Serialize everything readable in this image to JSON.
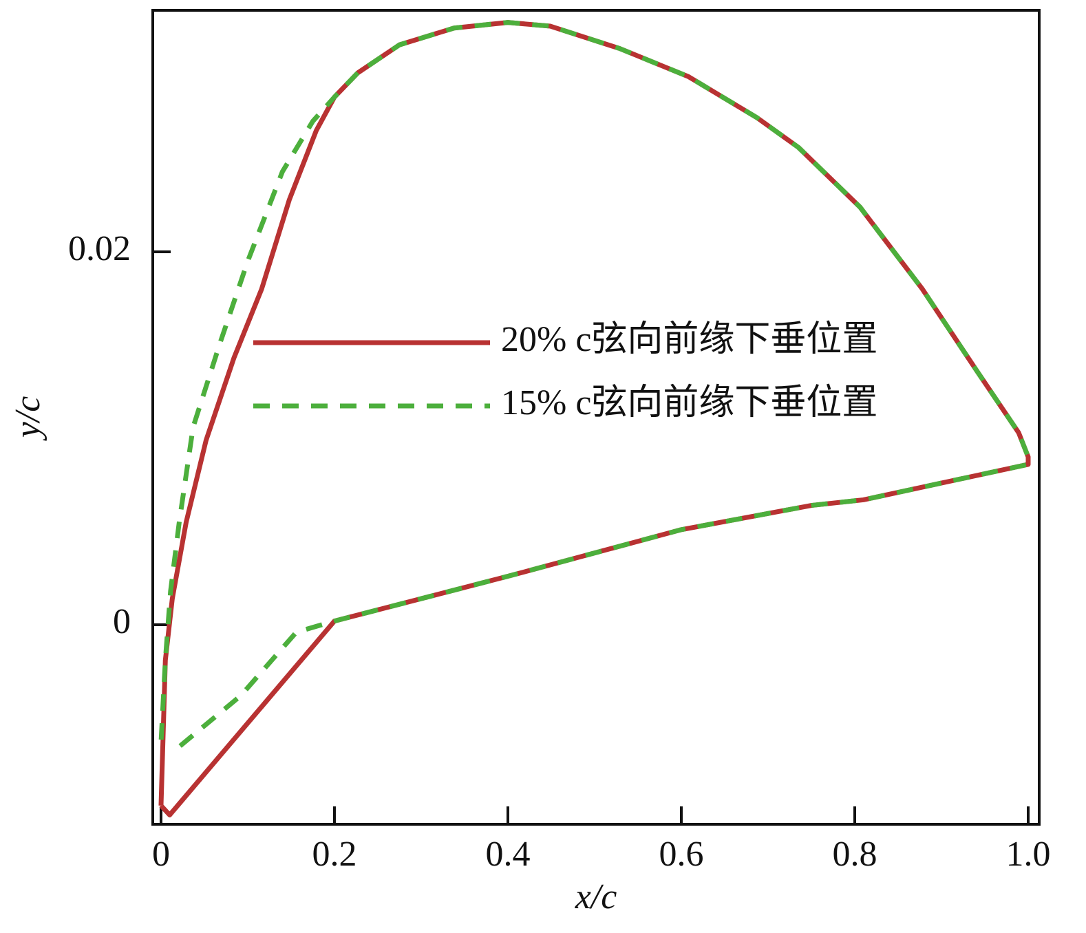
{
  "chart_data": {
    "type": "line",
    "x_label": "x/c",
    "y_label": "y/c",
    "xlim": [
      -0.0095,
      1.0127
    ],
    "ylim": [
      -0.0107,
      0.03295
    ],
    "xticks": [
      0,
      0.2,
      0.4,
      0.6,
      0.8,
      {
        "value": 1,
        "label": "1.0"
      }
    ],
    "yticks": [
      0,
      0.02
    ],
    "legend": "center-right",
    "series": [
      {
        "name": "20% c弦向前缘下垂位置",
        "color": "#b83232",
        "dash": "solid",
        "x": [
          0.0,
          0.01,
          0.2,
          0.4,
          0.6,
          0.75,
          0.81,
          1.0,
          1.0,
          0.989,
          0.941,
          0.878,
          0.806,
          0.735,
          0.687,
          0.608,
          0.529,
          0.449,
          0.4,
          0.338,
          0.275,
          0.227,
          0.2,
          0.179,
          0.148,
          0.116,
          0.084,
          0.052,
          0.029,
          0.013,
          0.005,
          0.0
        ],
        "values": [
          -0.0097,
          -0.0102,
          0.0002,
          0.0026,
          0.0051,
          0.0064,
          0.0067,
          0.0086,
          0.009,
          0.0103,
          0.0136,
          0.018,
          0.0224,
          0.0256,
          0.0272,
          0.0294,
          0.0309,
          0.0321,
          0.0323,
          0.032,
          0.0311,
          0.0296,
          0.0283,
          0.0265,
          0.0228,
          0.018,
          0.0143,
          0.0099,
          0.0055,
          0.0014,
          -0.0019,
          -0.0097
        ]
      },
      {
        "name": "15% c弦向前缘下垂位置",
        "color": "#4caf3c",
        "dash": "dashed",
        "x": [
          0.022,
          0.092,
          0.156,
          0.2,
          0.4,
          0.6,
          0.75,
          0.81,
          1.0,
          1.0,
          0.989,
          0.941,
          0.878,
          0.806,
          0.735,
          0.687,
          0.608,
          0.529,
          0.449,
          0.4,
          0.338,
          0.275,
          0.227,
          0.2,
          0.175,
          0.14,
          0.1,
          0.068,
          0.037,
          0.021,
          0.011,
          0.005,
          0.0
        ],
        "values": [
          -0.0065,
          -0.0038,
          -0.0004,
          0.0002,
          0.0026,
          0.0051,
          0.0064,
          0.0067,
          0.0086,
          0.009,
          0.0103,
          0.0136,
          0.018,
          0.0224,
          0.0256,
          0.0272,
          0.0294,
          0.0309,
          0.0321,
          0.0323,
          0.032,
          0.0311,
          0.0296,
          0.0283,
          0.027,
          0.0243,
          0.0195,
          0.0151,
          0.0106,
          0.0055,
          0.0018,
          -0.0019,
          -0.0063
        ]
      }
    ]
  }
}
